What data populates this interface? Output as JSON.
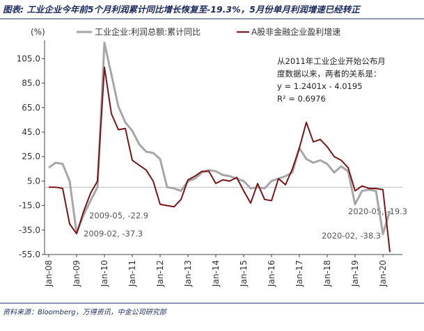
{
  "chart_data": {
    "type": "line",
    "title": "图表: 工业企业今年前5个月利润累计同比增长恢复至-19.3%，5月份单月利润增速已经转正",
    "y_unit": "(%)",
    "source": "资料来源：Bloomberg，万得资讯，中金公司研究部",
    "categories": [
      "Jan-08",
      null,
      null,
      null,
      "Jan-09",
      null,
      null,
      null,
      "Jan-10",
      null,
      null,
      null,
      "Jan-11",
      null,
      null,
      null,
      "Jan-12",
      null,
      null,
      null,
      "Jan-13",
      null,
      null,
      null,
      "Jan-14",
      null,
      null,
      null,
      "Jan-15",
      null,
      null,
      null,
      "Jan-16",
      null,
      null,
      null,
      "Jan-17",
      null,
      null,
      null,
      "Jan-18",
      null,
      null,
      null,
      "Jan-19",
      null,
      null,
      null,
      "Jan-20",
      null
    ],
    "series": [
      {
        "name": "工业企业:利润总额:累计同比",
        "color": "#a6a6a6",
        "values": [
          16,
          20,
          19,
          5,
          -37.3,
          -22.9,
          -11,
          0,
          118,
          92,
          66,
          53,
          46,
          35,
          29,
          28,
          23,
          0,
          -1,
          -3,
          5,
          7,
          12,
          14,
          13,
          10,
          9,
          7,
          5,
          -1,
          0,
          -1,
          5,
          7,
          9,
          12,
          32,
          23,
          20,
          22,
          19,
          12,
          17,
          13,
          -14,
          -3,
          -2,
          -3,
          -38.3,
          -19.3
        ]
      },
      {
        "name": "A股非金融企业盈利增速",
        "color": "#7b1416",
        "values": [
          0,
          0,
          -1,
          -30,
          -38,
          -20,
          -5,
          5,
          98,
          60,
          47,
          48,
          22,
          18,
          14,
          5,
          -14,
          -15,
          -16,
          -10,
          6,
          9,
          13,
          13,
          3,
          6,
          5,
          8,
          -3,
          -13,
          3,
          -10,
          -11,
          7,
          2,
          15,
          32,
          53,
          37,
          39,
          33,
          25,
          22,
          16,
          -3,
          1,
          -1,
          -1,
          -2,
          -53
        ]
      }
    ],
    "ylim": [
      -55,
      120
    ],
    "yticks": [
      {
        "value": -55,
        "label": "-55.0"
      },
      {
        "value": -35,
        "label": "-35.0"
      },
      {
        "value": -15,
        "label": "-15.0"
      },
      {
        "value": 5,
        "label": "5.0"
      },
      {
        "value": 25,
        "label": "25.0"
      },
      {
        "value": 45,
        "label": "45.0"
      },
      {
        "value": 65,
        "label": "65.0"
      },
      {
        "value": 85,
        "label": "85.0"
      },
      {
        "value": 105,
        "label": "105.0"
      }
    ],
    "annotations": [
      "2009-05, -22.9",
      "2009-02, -37.3",
      "2020-02, -38.3",
      "2020-05, -19.3"
    ],
    "equation": [
      "从2011年工业企业开始公布月",
      "度数据以来，两者的关系是：",
      "y = 1.2401x - 4.0195",
      "R² = 0.6976"
    ]
  }
}
